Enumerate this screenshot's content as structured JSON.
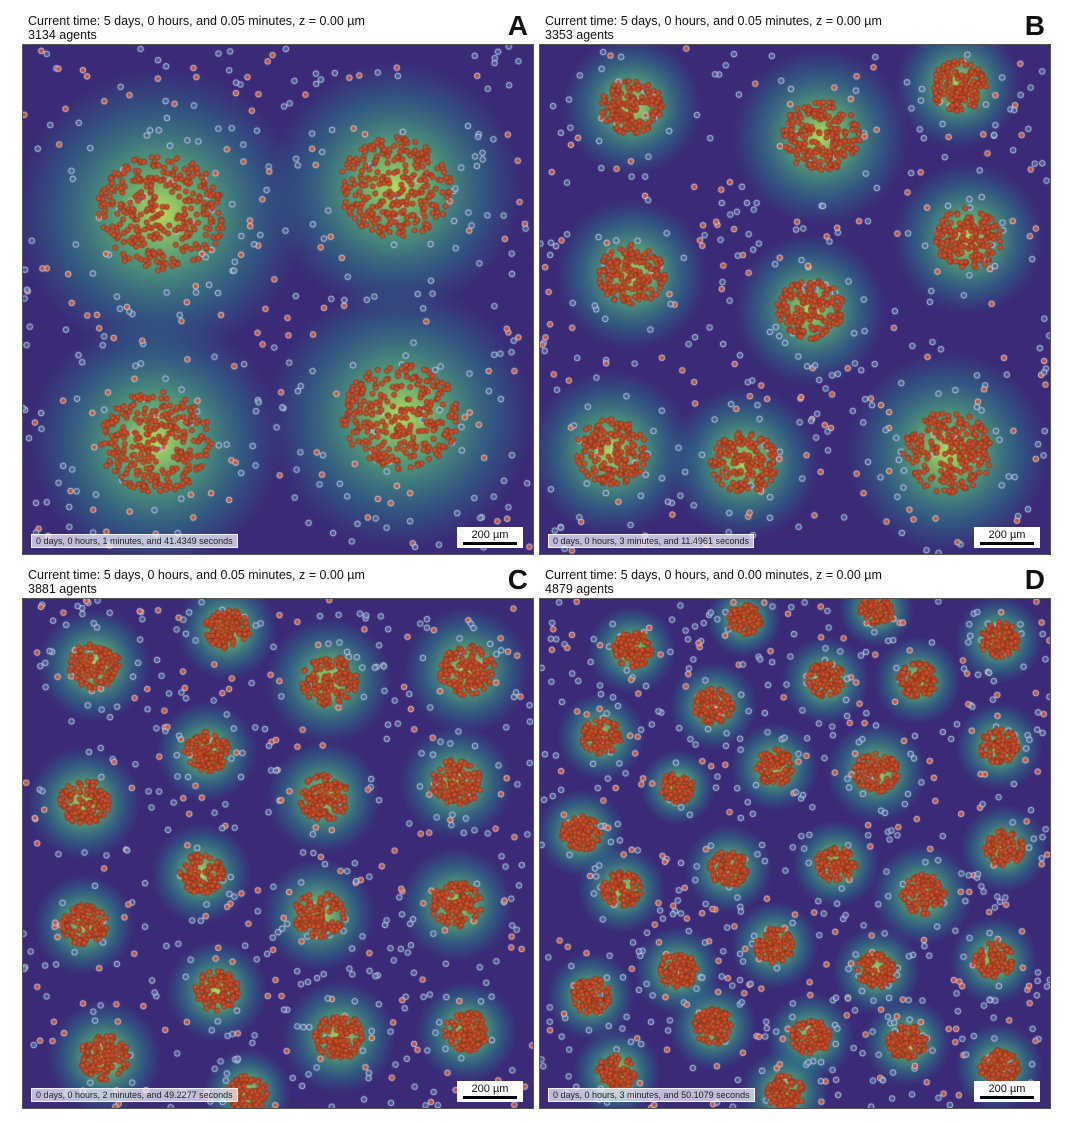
{
  "panels": [
    {
      "letter": "A",
      "header_time": "Current time: 5 days, 0 hours, and 0.05 minutes, z = 0.00 µm",
      "header_agents": "3134 agents",
      "clock": "0 days, 0 hours, 1 minutes, and 41.4349 seconds",
      "scale_label": "200 µm"
    },
    {
      "letter": "B",
      "header_time": "Current time: 5 days, 0 hours, and 0.05 minutes, z = 0.00 µm",
      "header_agents": "3353 agents",
      "clock": "0 days, 0 hours, 3 minutes, and 11.4961 seconds",
      "scale_label": "200 µm"
    },
    {
      "letter": "C",
      "header_time": "Current time: 5 days, 0 hours, and 0.05 minutes, z = 0.00 µm",
      "header_agents": "3881 agents",
      "clock": "0 days, 0 hours, 2 minutes, and 49.2277 seconds",
      "scale_label": "200 µm"
    },
    {
      "letter": "D",
      "header_time": "Current time: 5 days, 0 hours, and 0.00 minutes, z = 0.00 µm",
      "header_agents": "4879 agents",
      "clock": "0 days, 0 hours, 3 minutes, and 50.1079 seconds",
      "scale_label": "200 µm"
    }
  ],
  "colors": {
    "field_low": "#3b2a78",
    "field_mid": "#2a8c8c",
    "field_high": "#b9e35a",
    "agent_red": "#c8502c",
    "agent_outline": "#e8e8f0"
  }
}
